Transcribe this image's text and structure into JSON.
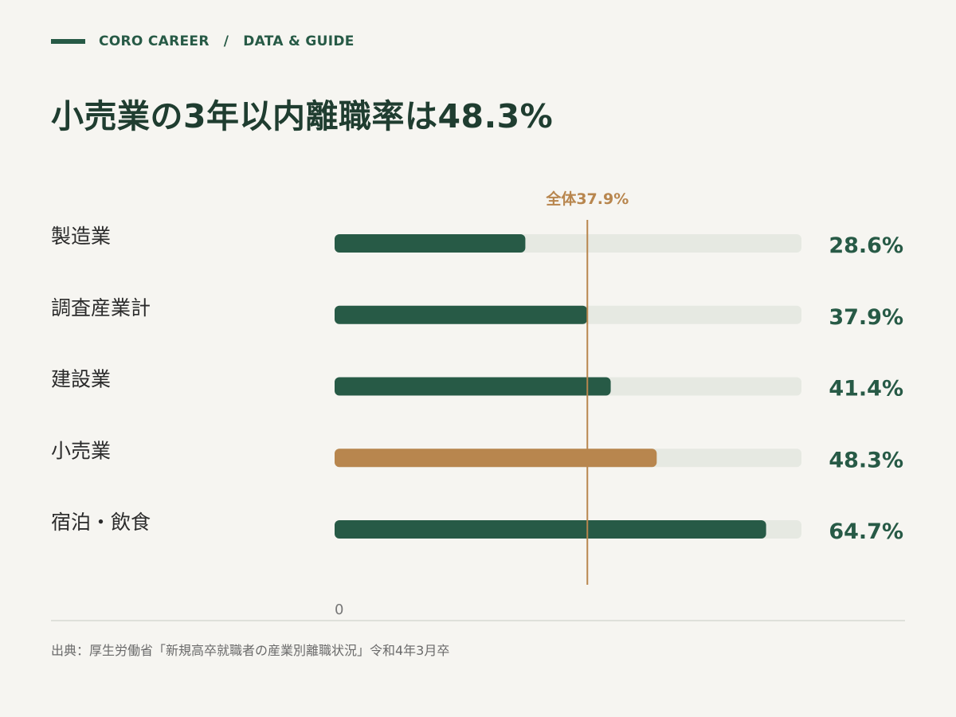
{
  "header": {
    "brand": "CORO CAREER",
    "separator": "/",
    "section": "DATA & GUIDE",
    "title": "小売業の3年以内離職率は48.3%"
  },
  "chart_data": {
    "type": "bar",
    "orientation": "horizontal",
    "categories": [
      "製造業",
      "調査産業計",
      "建設業",
      "小売業",
      "宿泊・飲食"
    ],
    "values": [
      28.6,
      37.9,
      41.4,
      48.3,
      64.7
    ],
    "value_labels": [
      "28.6%",
      "37.9%",
      "41.4%",
      "48.3%",
      "64.7%"
    ],
    "highlight_category": "小売業",
    "reference_line": {
      "value": 37.9,
      "label": "全体37.9%"
    },
    "xlim": [
      0,
      70
    ],
    "x_tick_labels": [
      "0"
    ],
    "grid": false,
    "colors": {
      "bar": "#275a46",
      "highlight": "#b8864e",
      "track": "#e6e9e2",
      "reference": "#b8864e"
    }
  },
  "footer": {
    "source": "出典：厚生労働省「新規高卒就職者の産業別離職状況」令和4年3月卒"
  }
}
